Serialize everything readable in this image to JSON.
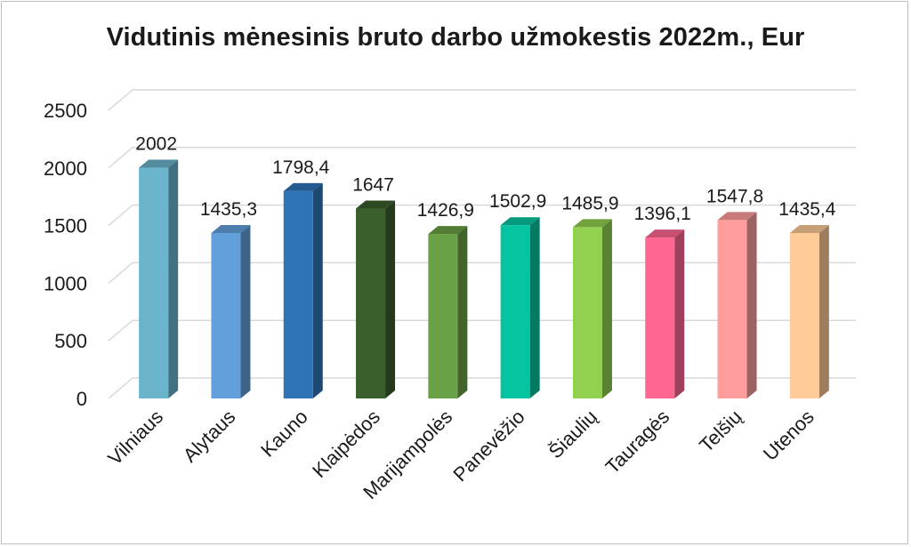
{
  "chart_data": {
    "type": "bar",
    "title": "Vidutinis mėnesinis bruto darbo užmokestis 2022m., Eur",
    "xlabel": "",
    "ylabel": "",
    "ylim": [
      0,
      2500
    ],
    "yticks": [
      0,
      500,
      1000,
      1500,
      2000,
      2500
    ],
    "grid": true,
    "legend": "none",
    "categories": [
      "Vilniaus",
      "Alytaus",
      "Kauno",
      "Klaipėdos",
      "Marijampolės",
      "Panevėžio",
      "Šiaulių",
      "Tauragės",
      "Telšių",
      "Utenos"
    ],
    "series": [
      {
        "values": [
          2002,
          1435.3,
          1798.4,
          1647,
          1426.9,
          1502.9,
          1485.9,
          1396.1,
          1547.8,
          1435.4
        ],
        "data_labels": [
          "2002",
          "1435,3",
          "1798,4",
          "1647",
          "1426,9",
          "1502,9",
          "1485,9",
          "1396,1",
          "1547,8",
          "1435,4"
        ],
        "colors": [
          "#6ab4cc",
          "#62a0dc",
          "#2f74b8",
          "#3a5e2c",
          "#6aa046",
          "#06c4a0",
          "#92d050",
          "#ff6692",
          "#ff9c9c",
          "#ffcc99"
        ]
      }
    ]
  }
}
